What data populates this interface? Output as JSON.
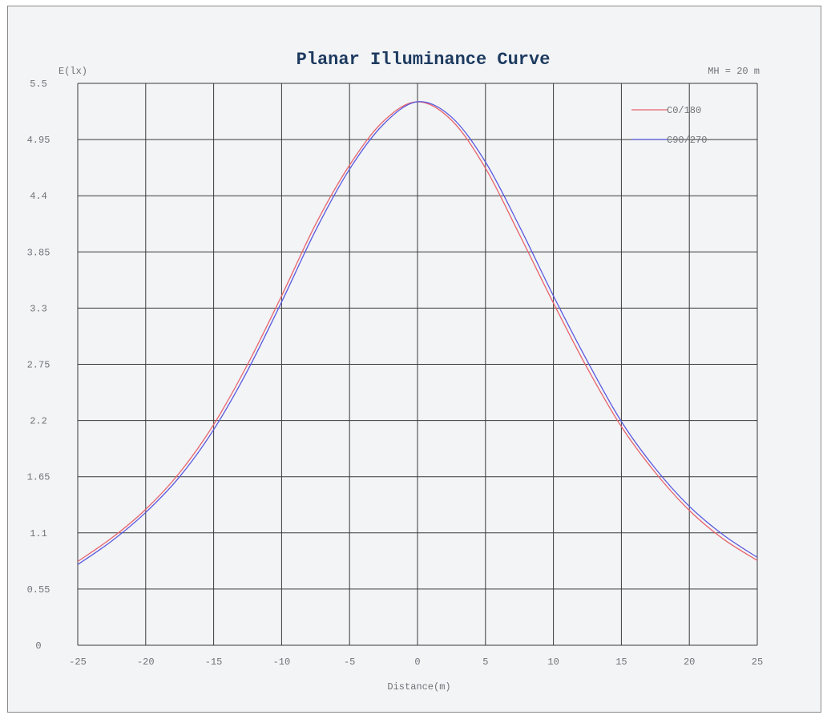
{
  "chart_data": {
    "type": "line",
    "title": "Planar Illuminance Curve",
    "ylabel": "E(lx)",
    "xlabel": "Distance(m)",
    "annotation": "MH = 20 m",
    "xlim": [
      -25,
      25
    ],
    "ylim": [
      0,
      5.5
    ],
    "x_ticks": [
      "-25",
      "-20",
      "-15",
      "-10",
      "-5",
      "0",
      "5",
      "10",
      "15",
      "20",
      "25"
    ],
    "y_ticks": [
      "0",
      "0.55",
      "1.1",
      "1.65",
      "2.2",
      "2.75",
      "3.3",
      "3.85",
      "4.4",
      "4.95",
      "5.5"
    ],
    "grid": true,
    "legend_position": "top-right",
    "x": [
      -25,
      -22.5,
      -20,
      -17.5,
      -15,
      -12.5,
      -10,
      -7.5,
      -5,
      -2.5,
      0,
      2.5,
      5,
      7.5,
      10,
      12.5,
      15,
      17.5,
      20,
      22.5,
      25
    ],
    "series": [
      {
        "name": "C0/180",
        "color": "#e8636b",
        "values": [
          0.82,
          1.05,
          1.33,
          1.69,
          2.16,
          2.75,
          3.42,
          4.12,
          4.7,
          5.13,
          5.32,
          5.14,
          4.67,
          4.02,
          3.35,
          2.71,
          2.14,
          1.69,
          1.32,
          1.04,
          0.83
        ]
      },
      {
        "name": "C90/270",
        "color": "#5a59e0",
        "values": [
          0.79,
          1.02,
          1.3,
          1.65,
          2.11,
          2.69,
          3.36,
          4.06,
          4.66,
          5.1,
          5.32,
          5.17,
          4.73,
          4.1,
          3.42,
          2.78,
          2.19,
          1.73,
          1.36,
          1.08,
          0.86
        ]
      }
    ]
  }
}
